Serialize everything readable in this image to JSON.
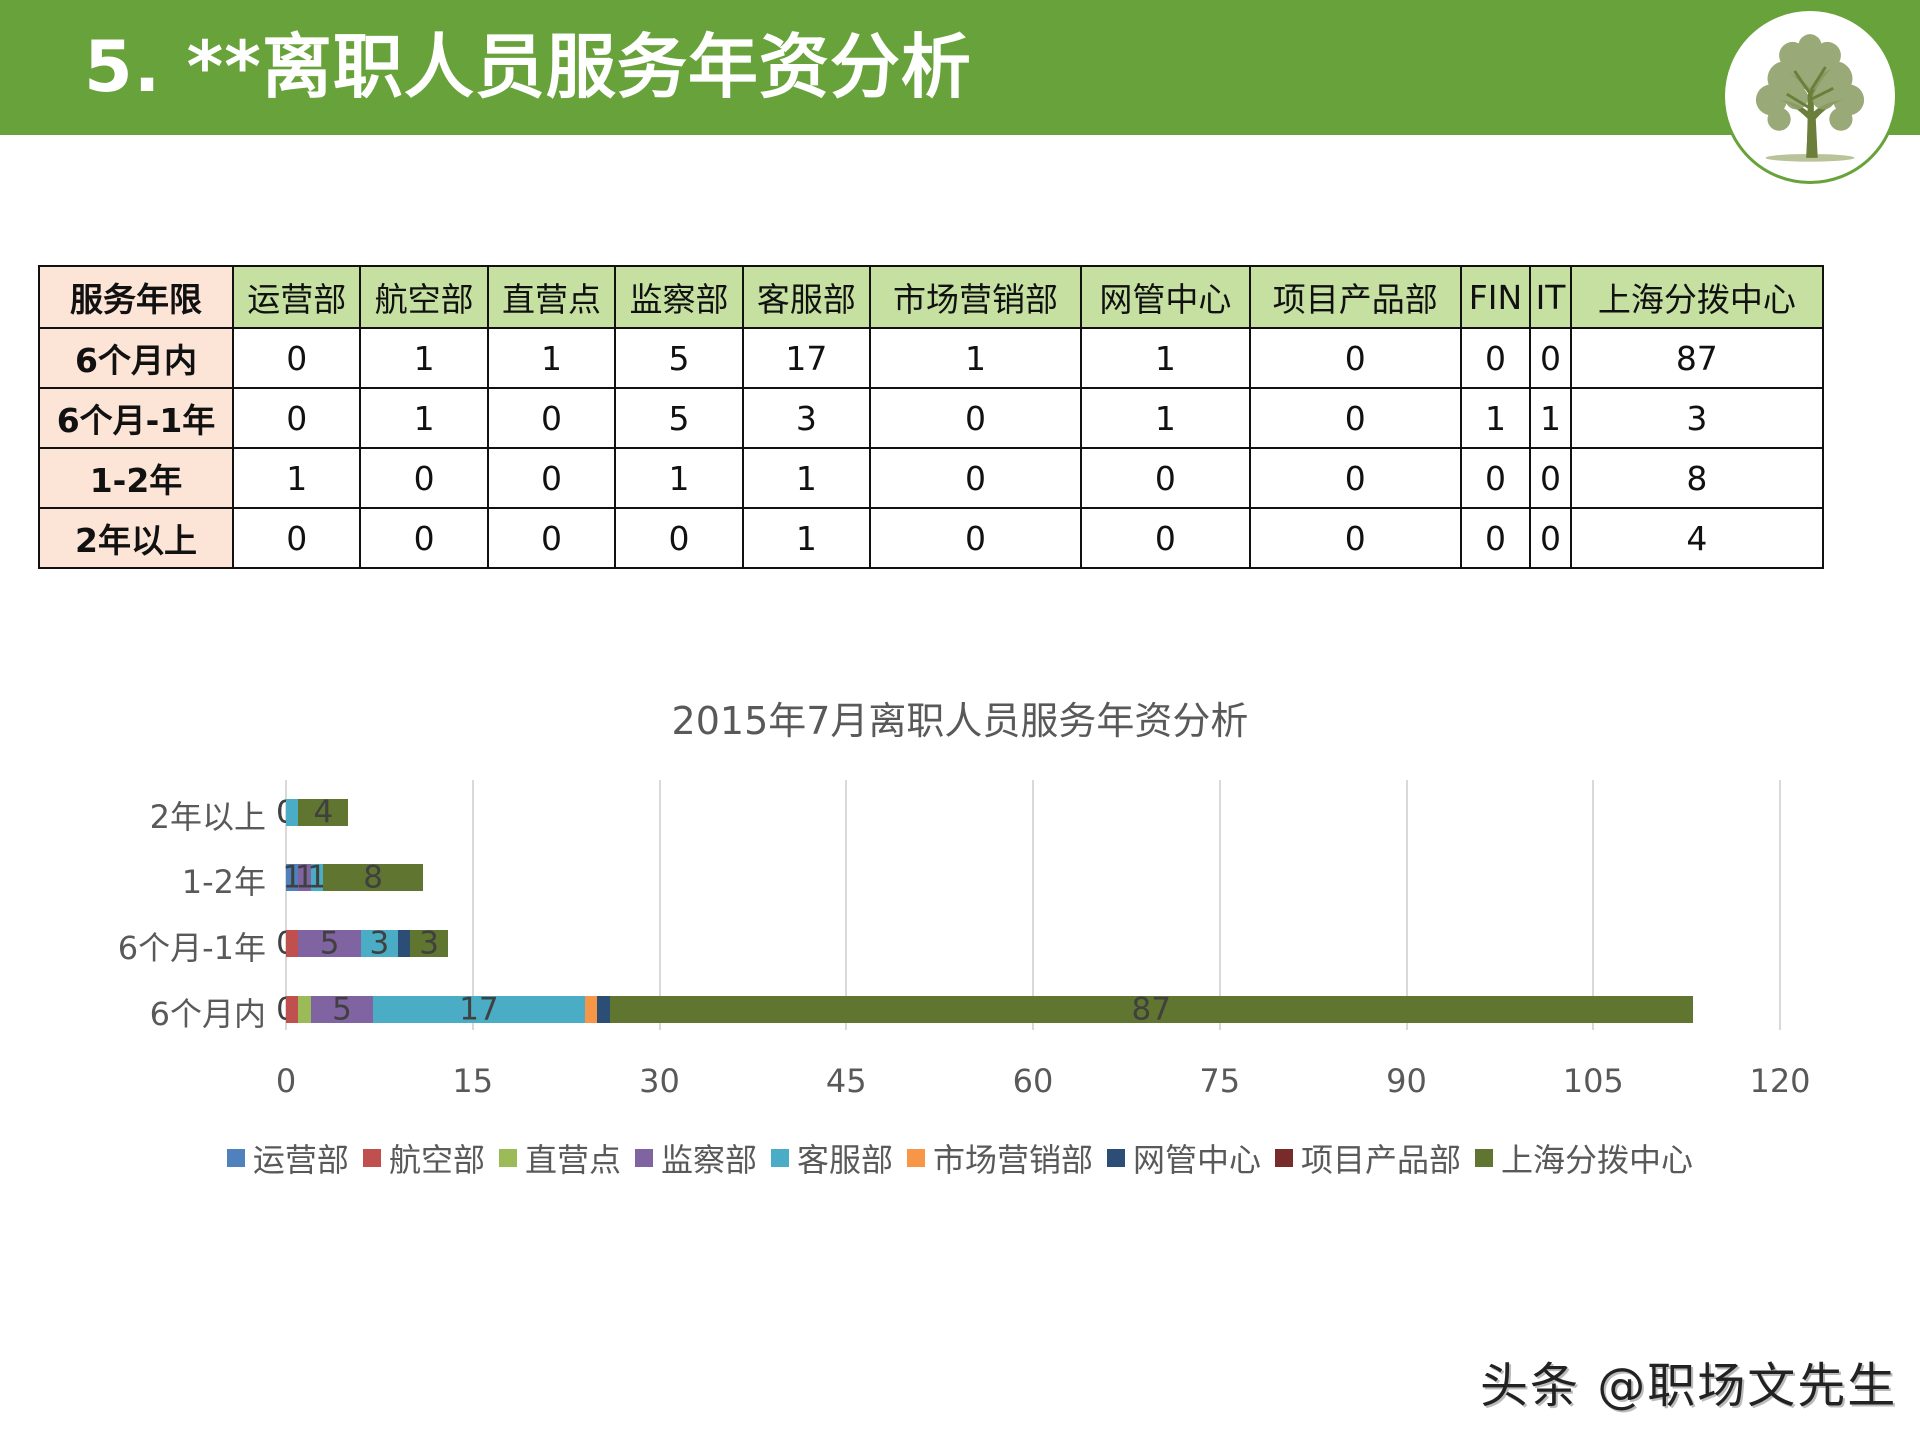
{
  "header": {
    "title": "5. **离职人员服务年资分析",
    "background_color": "#67a23a",
    "logo_icon": "tree-icon"
  },
  "table": {
    "corner_label": "服务年限",
    "columns": [
      "运营部",
      "航空部",
      "直营点",
      "监察部",
      "客服部",
      "市场营销部",
      "网管中心",
      "项目产品部",
      "FIN",
      "IT",
      "上海分拨中心"
    ],
    "rows": [
      {
        "label": "6个月内",
        "values": [
          "0",
          "1",
          "1",
          "5",
          "17",
          "1",
          "1",
          "0",
          "0",
          "0",
          "87"
        ]
      },
      {
        "label": "6个月-1年",
        "values": [
          "0",
          "1",
          "0",
          "5",
          "3",
          "0",
          "1",
          "0",
          "1",
          "1",
          "3"
        ]
      },
      {
        "label": "1-2年",
        "values": [
          "1",
          "0",
          "0",
          "1",
          "1",
          "0",
          "0",
          "0",
          "0",
          "0",
          "8"
        ]
      },
      {
        "label": "2年以上",
        "values": [
          "0",
          "0",
          "0",
          "0",
          "1",
          "0",
          "0",
          "0",
          "0",
          "0",
          "4"
        ]
      }
    ],
    "header_bg": "#c5e0a0",
    "rowhead_bg": "#fce4d6"
  },
  "chart_data": {
    "type": "bar",
    "orientation": "horizontal",
    "stacked": true,
    "title": "2015年7月离职人员服务年资分析",
    "xlabel": "",
    "ylabel": "",
    "categories": [
      "6个月内",
      "6个月-1年",
      "1-2年",
      "2年以上"
    ],
    "xlim": [
      0,
      120
    ],
    "x_ticks": [
      "0",
      "15",
      "30",
      "45",
      "60",
      "75",
      "90",
      "105",
      "120"
    ],
    "grid": true,
    "legend_position": "bottom",
    "series": [
      {
        "name": "运营部",
        "color": "#4f81bd",
        "values": [
          0,
          0,
          1,
          0
        ]
      },
      {
        "name": "航空部",
        "color": "#c0504d",
        "values": [
          1,
          1,
          0,
          0
        ]
      },
      {
        "name": "直营点",
        "color": "#9bbb59",
        "values": [
          1,
          0,
          0,
          0
        ]
      },
      {
        "name": "监察部",
        "color": "#8064a2",
        "values": [
          5,
          5,
          1,
          0
        ]
      },
      {
        "name": "客服部",
        "color": "#4bacc6",
        "values": [
          17,
          3,
          1,
          1
        ]
      },
      {
        "name": "市场营销部",
        "color": "#f79646",
        "values": [
          1,
          0,
          0,
          0
        ]
      },
      {
        "name": "网管中心",
        "color": "#2c4d75",
        "values": [
          1,
          1,
          0,
          0
        ]
      },
      {
        "name": "项目产品部",
        "color": "#772c2a",
        "values": [
          0,
          0,
          0,
          0
        ]
      },
      {
        "name": "上海分拨中心",
        "color": "#5f7530",
        "values": [
          87,
          3,
          8,
          4
        ]
      }
    ],
    "visible_data_labels": {
      "6个月内": [
        "0",
        "5",
        "17",
        "87"
      ],
      "6个月-1年": [
        "0",
        "5",
        "3",
        "3"
      ],
      "1-2年": [
        "1",
        "1",
        "1",
        "8"
      ],
      "2年以上": [
        "0",
        "1",
        "4"
      ]
    }
  },
  "watermark": "头条 @职场文先生"
}
